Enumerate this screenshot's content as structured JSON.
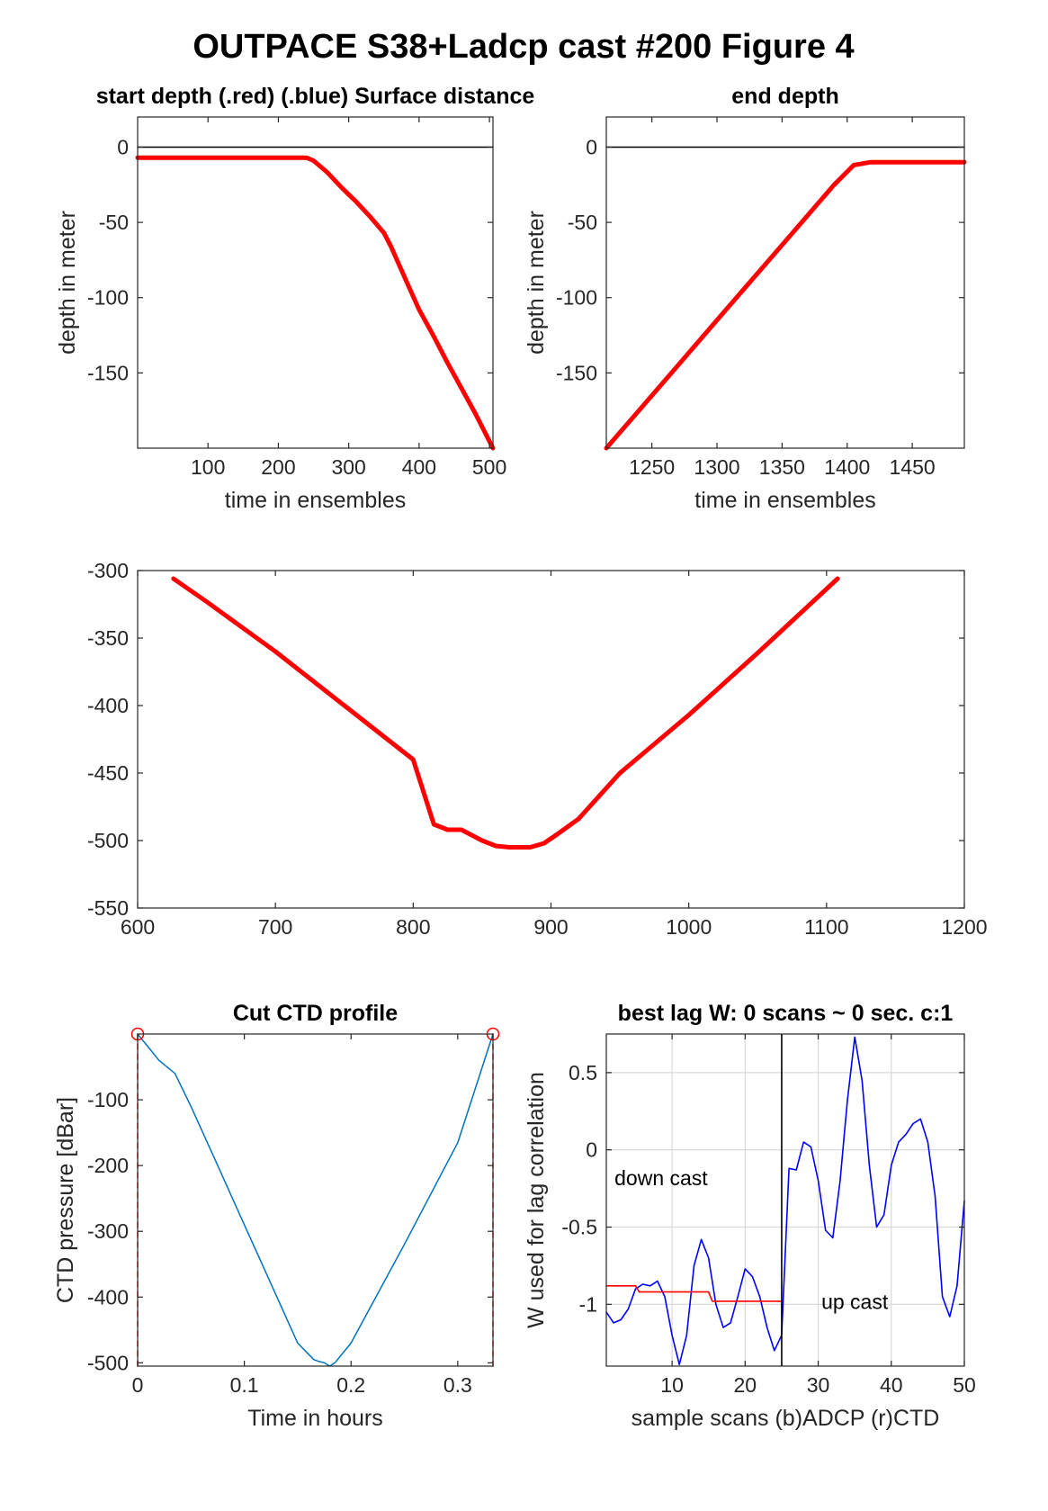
{
  "figure": {
    "title": "OUTPACE S38+Ladcp cast #200   Figure 4"
  },
  "chart_data": [
    {
      "type": "line",
      "title": "start depth (.red) (.blue) Surface distance",
      "xlabel": "time in ensembles",
      "ylabel": "depth in meter",
      "xlim": [
        0,
        505
      ],
      "ylim": [
        -200,
        20
      ],
      "xticks": [
        100,
        200,
        300,
        400,
        500
      ],
      "yticks": [
        0,
        -50,
        -100,
        -150
      ],
      "grid": false,
      "series": [
        {
          "color": "#ff0000",
          "x": [
            0,
            100,
            200,
            240,
            250,
            270,
            290,
            310,
            330,
            350,
            360,
            380,
            400,
            420,
            440,
            460,
            480,
            505
          ],
          "y": [
            -7,
            -7,
            -7,
            -7,
            -9,
            -17,
            -27,
            -36,
            -46,
            -57,
            -66,
            -87,
            -108,
            -125,
            -143,
            -160,
            -177,
            -200
          ]
        },
        {
          "color": "#000000",
          "x": [
            0,
            505
          ],
          "y": [
            0,
            0
          ]
        }
      ]
    },
    {
      "type": "line",
      "title": "end depth",
      "xlabel": "time in ensembles",
      "ylabel": "depth in meter",
      "xlim": [
        1215,
        1490
      ],
      "ylim": [
        -200,
        20
      ],
      "xticks": [
        1250,
        1300,
        1350,
        1400,
        1450
      ],
      "yticks": [
        0,
        -50,
        -100,
        -150
      ],
      "grid": false,
      "series": [
        {
          "color": "#ff0000",
          "x": [
            1215,
            1250,
            1300,
            1350,
            1390,
            1405,
            1418,
            1440,
            1490
          ],
          "y": [
            -200,
            -165,
            -115,
            -65,
            -25,
            -12,
            -10,
            -10,
            -10
          ]
        },
        {
          "color": "#000000",
          "x": [
            1215,
            1490
          ],
          "y": [
            0,
            0
          ]
        }
      ]
    },
    {
      "type": "line",
      "title": "",
      "xlabel": "",
      "ylabel": "",
      "xlim": [
        600,
        1200
      ],
      "ylim": [
        -550,
        -300
      ],
      "xticks": [
        600,
        700,
        800,
        900,
        1000,
        1100,
        1200
      ],
      "yticks": [
        -300,
        -350,
        -400,
        -450,
        -500,
        -550
      ],
      "grid": false,
      "series": [
        {
          "color": "#ff0000",
          "x": [
            626,
            650,
            700,
            750,
            800,
            815,
            825,
            835,
            850,
            860,
            870,
            885,
            895,
            905,
            920,
            950,
            1000,
            1050,
            1108
          ],
          "y": [
            -306,
            -323,
            -360,
            -400,
            -440,
            -488,
            -492,
            -492,
            -500,
            -504,
            -505,
            -505,
            -502,
            -495,
            -484,
            -450,
            -407,
            -361,
            -306
          ]
        }
      ]
    },
    {
      "type": "line",
      "title": "Cut CTD profile",
      "xlabel": "Time in hours",
      "ylabel": "CTD pressure [dBar]",
      "xlim": [
        0,
        0.333
      ],
      "ylim": [
        -505,
        0
      ],
      "xticks": [
        0,
        0.1,
        0.2,
        0.3
      ],
      "xticklabels": [
        "0",
        "0.1",
        "0.2",
        "0.3"
      ],
      "yticks": [
        -100,
        -200,
        -300,
        -400,
        -500
      ],
      "grid": false,
      "series": [
        {
          "color": "#0072bd",
          "x": [
            0,
            0.01,
            0.02,
            0.035,
            0.05,
            0.075,
            0.1,
            0.125,
            0.15,
            0.165,
            0.17,
            0.175,
            0.18,
            0.185,
            0.2,
            0.25,
            0.3,
            0.333
          ],
          "y": [
            0,
            -20,
            -40,
            -60,
            -110,
            -200,
            -290,
            -380,
            -470,
            -495,
            -498,
            -500,
            -505,
            -500,
            -470,
            -320,
            -165,
            0
          ]
        },
        {
          "color": "#ff0000",
          "x": [
            0,
            0
          ],
          "y": [
            0,
            -505
          ]
        },
        {
          "color": "#ff0000",
          "x": [
            0.333,
            0.333
          ],
          "y": [
            0,
            -505
          ]
        }
      ],
      "markers": [
        {
          "x": 0,
          "y": 0
        },
        {
          "x": 0.333,
          "y": 0
        }
      ]
    },
    {
      "type": "line",
      "title": "best lag W: 0 scans ~ 0 sec.  c:1",
      "xlabel": "sample scans (b)ADCP (r)CTD",
      "ylabel": "W used for lag correlation",
      "xlim": [
        1,
        50
      ],
      "ylim": [
        -1.4,
        0.75
      ],
      "xticks": [
        10,
        20,
        30,
        40,
        50
      ],
      "yticks": [
        0.5,
        0,
        -0.5,
        -1
      ],
      "grid": true,
      "annotations": [
        {
          "text": "down cast",
          "x": 8.5,
          "y": -0.23
        },
        {
          "text": "up cast",
          "x": 35,
          "y": -1.03
        }
      ],
      "vline": 25,
      "series": [
        {
          "name": "ADCP",
          "color": "#0000ff",
          "x": [
            1,
            2,
            3,
            4,
            5,
            6,
            7,
            8,
            9,
            10,
            11,
            12,
            13,
            14,
            15,
            16,
            17,
            18,
            19,
            20,
            21,
            22,
            23,
            24,
            25,
            26,
            27,
            28,
            29,
            30,
            31,
            32,
            33,
            34,
            35,
            36,
            37,
            38,
            39,
            40,
            41,
            42,
            43,
            44,
            45,
            46,
            47,
            48,
            49,
            50
          ],
          "y": [
            -1.05,
            -1.12,
            -1.1,
            -1.03,
            -0.9,
            -0.87,
            -0.88,
            -0.85,
            -0.95,
            -1.2,
            -1.39,
            -1.2,
            -0.75,
            -0.58,
            -0.7,
            -1.0,
            -1.15,
            -1.12,
            -0.95,
            -0.77,
            -0.82,
            -0.95,
            -1.15,
            -1.3,
            -1.2,
            -0.12,
            -0.13,
            0.05,
            0.02,
            -0.2,
            -0.52,
            -0.57,
            -0.2,
            0.32,
            0.73,
            0.45,
            -0.1,
            -0.5,
            -0.42,
            -0.1,
            0.05,
            0.1,
            0.17,
            0.2,
            0.05,
            -0.3,
            -0.95,
            -1.08,
            -0.88,
            -0.33
          ]
        },
        {
          "name": "CTD",
          "color": "#ff0000",
          "x": [
            1,
            5,
            5.5,
            10,
            15,
            15.5,
            25
          ],
          "y": [
            -0.88,
            -0.88,
            -0.92,
            -0.92,
            -0.92,
            -0.98,
            -0.98
          ]
        }
      ]
    }
  ]
}
